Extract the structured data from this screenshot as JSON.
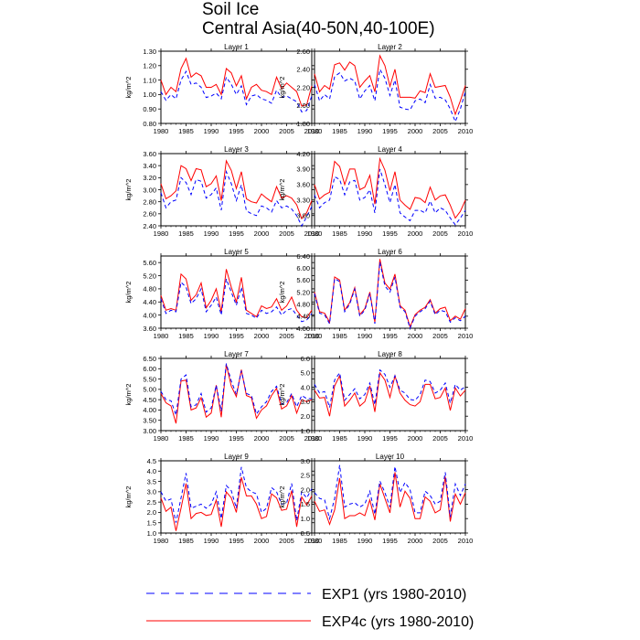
{
  "title": {
    "line1": "Soil Ice",
    "line2": "Central Asia(40-50N,40-100E)"
  },
  "legend": [
    {
      "label": "EXP1 (yrs 1980-2010)",
      "color": "#0000ff",
      "dashed": true
    },
    {
      "label": "EXP4c (yrs 1980-2010)",
      "color": "#ff0000",
      "dashed": false
    }
  ],
  "chart_data": {
    "type": "line",
    "xlabel": "",
    "ylabel": "kg/m^2",
    "x": [
      1980,
      1981,
      1982,
      1983,
      1984,
      1985,
      1986,
      1987,
      1988,
      1989,
      1990,
      1991,
      1992,
      1993,
      1994,
      1995,
      1996,
      1997,
      1998,
      1999,
      2000,
      2001,
      2002,
      2003,
      2004,
      2005,
      2006,
      2007,
      2008,
      2009,
      2010
    ],
    "xlim": [
      1980,
      2010
    ],
    "xticks": [
      1980,
      1985,
      1990,
      1995,
      2000,
      2005,
      2010
    ],
    "series_names": [
      "EXP1 (yrs 1980-2010)",
      "EXP4c (yrs 1980-2010)"
    ],
    "panels": [
      {
        "title": "Layer 1",
        "ylim": [
          0.8,
          1.3
        ],
        "yticks": [
          "0.80",
          "0.90",
          "1.00",
          "1.10",
          "1.20",
          "1.30"
        ],
        "exp1": [
          1.02,
          0.96,
          1.0,
          0.97,
          1.1,
          1.16,
          1.07,
          1.08,
          1.05,
          0.98,
          0.99,
          1.01,
          0.97,
          1.12,
          1.07,
          1.0,
          1.06,
          0.93,
          0.99,
          1.0,
          0.97,
          0.96,
          0.94,
          1.03,
          0.98,
          0.99,
          0.97,
          0.95,
          0.88,
          0.89,
          0.99
        ],
        "exp4c": [
          1.1,
          1.0,
          1.05,
          1.02,
          1.18,
          1.25,
          1.12,
          1.15,
          1.13,
          1.05,
          1.05,
          1.07,
          1.0,
          1.18,
          1.15,
          1.06,
          1.13,
          0.97,
          1.05,
          1.07,
          1.03,
          1.02,
          1.0,
          1.12,
          1.04,
          1.08,
          1.05,
          1.02,
          0.92,
          0.93,
          1.06
        ]
      },
      {
        "title": "Layer 2",
        "ylim": [
          1.8,
          2.6
        ],
        "yticks": [
          "1.80",
          "2.00",
          "2.20",
          "2.40",
          "2.60"
        ],
        "exp1": [
          2.23,
          2.05,
          2.12,
          2.07,
          2.32,
          2.36,
          2.27,
          2.3,
          2.27,
          2.07,
          2.16,
          2.22,
          2.05,
          2.4,
          2.3,
          2.11,
          2.28,
          1.98,
          1.96,
          1.95,
          2.05,
          2.07,
          2.03,
          2.23,
          2.08,
          2.09,
          2.06,
          1.96,
          1.82,
          1.96,
          2.15
        ],
        "exp4c": [
          2.35,
          2.15,
          2.22,
          2.18,
          2.45,
          2.47,
          2.39,
          2.48,
          2.44,
          2.2,
          2.27,
          2.33,
          2.15,
          2.55,
          2.44,
          2.21,
          2.4,
          2.09,
          2.09,
          2.09,
          2.08,
          2.16,
          2.14,
          2.35,
          2.2,
          2.21,
          2.22,
          2.09,
          1.9,
          2.05,
          2.22
        ]
      },
      {
        "title": "Layer 3",
        "ylim": [
          2.4,
          3.6
        ],
        "yticks": [
          "2.40",
          "2.60",
          "2.80",
          "3.00",
          "3.20",
          "3.40",
          "3.60"
        ],
        "exp1": [
          2.95,
          2.7,
          2.8,
          2.83,
          3.2,
          3.12,
          2.92,
          3.17,
          3.14,
          2.86,
          2.92,
          3.03,
          2.66,
          3.3,
          3.1,
          2.82,
          3.08,
          2.65,
          2.6,
          2.57,
          2.73,
          2.7,
          2.63,
          2.82,
          2.7,
          2.73,
          2.68,
          2.57,
          2.4,
          2.55,
          2.72
        ],
        "exp4c": [
          3.1,
          2.85,
          2.9,
          2.98,
          3.4,
          3.35,
          3.15,
          3.35,
          3.33,
          3.05,
          3.1,
          3.23,
          2.82,
          3.48,
          3.32,
          3.02,
          3.3,
          2.85,
          2.8,
          2.78,
          2.93,
          2.86,
          2.8,
          3.05,
          2.86,
          2.9,
          2.86,
          2.75,
          2.52,
          2.62,
          2.82
        ]
      },
      {
        "title": "Layer 4",
        "ylim": [
          2.8,
          4.2
        ],
        "yticks": [
          "3.00",
          "3.30",
          "3.60",
          "3.90",
          "4.20"
        ],
        "exp1": [
          3.4,
          3.15,
          3.25,
          3.3,
          3.75,
          3.7,
          3.4,
          3.65,
          3.68,
          3.3,
          3.35,
          3.5,
          3.05,
          3.9,
          3.6,
          3.25,
          3.6,
          3.05,
          2.97,
          2.9,
          3.1,
          3.1,
          3.05,
          3.28,
          3.05,
          3.15,
          3.1,
          2.95,
          2.82,
          2.95,
          3.1
        ],
        "exp4c": [
          3.6,
          3.32,
          3.4,
          3.45,
          4.05,
          3.95,
          3.6,
          3.9,
          3.9,
          3.5,
          3.55,
          3.78,
          3.22,
          4.1,
          3.88,
          3.48,
          3.85,
          3.3,
          3.2,
          3.12,
          3.35,
          3.33,
          3.25,
          3.55,
          3.3,
          3.38,
          3.4,
          3.2,
          2.95,
          3.08,
          3.3
        ]
      },
      {
        "title": "Layer 5",
        "ylim": [
          3.6,
          5.8
        ],
        "yticks": [
          "3.60",
          "4.00",
          "4.40",
          "4.80",
          "5.20",
          "5.60"
        ],
        "exp1": [
          4.5,
          4.05,
          4.15,
          4.1,
          5.0,
          4.85,
          4.35,
          4.5,
          4.8,
          4.1,
          4.3,
          4.55,
          4.0,
          5.1,
          4.7,
          4.3,
          4.85,
          4.05,
          4.0,
          3.9,
          4.15,
          4.05,
          4.1,
          4.25,
          4.0,
          4.15,
          4.2,
          4.0,
          3.8,
          3.85,
          4.05
        ],
        "exp4c": [
          4.6,
          4.15,
          4.2,
          4.15,
          5.25,
          5.1,
          4.45,
          4.62,
          4.98,
          4.22,
          4.45,
          4.8,
          4.1,
          5.4,
          4.85,
          4.4,
          5.15,
          4.15,
          4.05,
          3.95,
          4.28,
          4.2,
          4.25,
          4.5,
          4.15,
          4.28,
          4.55,
          4.15,
          3.95,
          3.92,
          4.15
        ]
      },
      {
        "title": "Layer 6",
        "ylim": [
          4.0,
          6.4
        ],
        "yticks": [
          "4.00",
          "4.40",
          "4.80",
          "5.20",
          "5.60",
          "6.00",
          "6.40"
        ],
        "exp1": [
          5.15,
          4.5,
          4.45,
          4.15,
          5.65,
          5.55,
          4.55,
          4.8,
          5.3,
          4.4,
          4.6,
          5.15,
          4.15,
          6.2,
          5.4,
          5.2,
          5.7,
          4.7,
          4.55,
          4.0,
          4.4,
          4.55,
          4.65,
          4.9,
          4.45,
          4.6,
          4.55,
          4.2,
          4.35,
          4.25,
          4.4
        ],
        "exp4c": [
          5.2,
          4.55,
          4.5,
          4.2,
          5.7,
          5.6,
          4.6,
          4.85,
          5.35,
          4.45,
          4.65,
          5.2,
          4.2,
          6.3,
          5.5,
          5.3,
          5.8,
          4.75,
          4.6,
          4.05,
          4.45,
          4.6,
          4.7,
          4.95,
          4.5,
          4.65,
          4.7,
          4.25,
          4.4,
          4.3,
          4.65
        ]
      },
      {
        "title": "Layer 7",
        "ylim": [
          3.0,
          6.5
        ],
        "yticks": [
          "3.00",
          "3.50",
          "4.00",
          "4.50",
          "5.00",
          "5.50",
          "6.00",
          "6.50"
        ],
        "exp1": [
          4.9,
          4.5,
          4.45,
          3.75,
          5.5,
          5.7,
          4.15,
          4.25,
          4.8,
          3.9,
          4.1,
          5.2,
          3.95,
          6.25,
          5.4,
          4.75,
          5.9,
          4.8,
          4.7,
          3.8,
          4.15,
          4.4,
          4.9,
          5.15,
          4.3,
          4.35,
          4.8,
          4.15,
          4.7,
          4.55,
          4.55
        ],
        "exp4c": [
          4.8,
          4.35,
          4.2,
          3.35,
          5.4,
          5.45,
          4.0,
          4.1,
          4.6,
          3.65,
          3.85,
          5.2,
          3.65,
          6.2,
          5.15,
          4.65,
          5.95,
          4.7,
          4.6,
          3.6,
          4.0,
          4.2,
          4.7,
          5.05,
          4.05,
          4.2,
          4.7,
          3.85,
          4.5,
          4.4,
          4.5
        ]
      },
      {
        "title": "Layer 8",
        "ylim": [
          1.0,
          6.0
        ],
        "yticks": [
          "1.0",
          "2.0",
          "3.0",
          "4.0",
          "5.0",
          "6.0"
        ],
        "exp1": [
          4.2,
          3.6,
          3.7,
          2.6,
          4.5,
          5.0,
          3.1,
          3.5,
          3.9,
          3.2,
          3.5,
          4.3,
          2.8,
          5.2,
          4.9,
          4.0,
          4.8,
          3.8,
          3.6,
          3.15,
          3.1,
          3.5,
          4.5,
          4.4,
          3.6,
          3.8,
          4.3,
          2.9,
          4.2,
          3.8,
          4.05
        ],
        "exp4c": [
          3.8,
          3.25,
          3.3,
          2.0,
          4.1,
          4.8,
          2.7,
          3.1,
          3.6,
          2.7,
          3.0,
          4.1,
          2.3,
          5.0,
          4.5,
          3.3,
          4.8,
          3.6,
          3.1,
          2.8,
          2.7,
          3.0,
          4.2,
          4.2,
          3.2,
          3.3,
          3.95,
          2.4,
          3.95,
          3.4,
          3.8
        ]
      },
      {
        "title": "Layer 9",
        "ylim": [
          1.0,
          4.5
        ],
        "yticks": [
          "1.0",
          "1.5",
          "2.0",
          "2.5",
          "3.0",
          "3.5",
          "4.0",
          "4.5"
        ],
        "exp1": [
          3.0,
          2.55,
          2.65,
          1.5,
          2.7,
          3.9,
          2.2,
          2.3,
          2.4,
          2.2,
          2.4,
          3.0,
          1.7,
          3.3,
          3.05,
          2.2,
          4.2,
          3.2,
          3.0,
          2.9,
          2.0,
          2.2,
          3.2,
          3.0,
          2.4,
          2.45,
          3.4,
          1.6,
          3.0,
          2.7,
          3.15
        ],
        "exp4c": [
          2.7,
          2.05,
          2.25,
          1.1,
          2.2,
          3.4,
          1.7,
          1.95,
          2.0,
          1.85,
          1.9,
          2.6,
          1.3,
          3.0,
          2.7,
          2.0,
          3.7,
          2.8,
          2.8,
          2.4,
          1.7,
          1.8,
          2.9,
          2.7,
          2.1,
          2.15,
          3.05,
          1.3,
          2.75,
          2.35,
          2.8
        ]
      },
      {
        "title": "Layer 10",
        "ylim": [
          0.5,
          3.0
        ],
        "yticks": [
          "0.5",
          "1.0",
          "1.5",
          "2.0",
          "2.5",
          "3.0"
        ],
        "exp1": [
          1.9,
          1.7,
          1.65,
          1.0,
          1.7,
          2.85,
          1.4,
          1.5,
          1.55,
          1.4,
          1.5,
          1.95,
          1.15,
          2.3,
          1.9,
          1.4,
          2.8,
          1.9,
          2.25,
          2.0,
          1.2,
          1.2,
          1.95,
          1.8,
          1.5,
          1.6,
          2.6,
          1.05,
          2.2,
          1.8,
          2.2
        ],
        "exp4c": [
          1.6,
          1.25,
          1.3,
          0.8,
          1.3,
          2.4,
          1.0,
          1.1,
          1.1,
          1.2,
          1.1,
          1.65,
          0.95,
          2.2,
          1.7,
          1.2,
          2.6,
          1.4,
          1.95,
          1.7,
          1.0,
          1.0,
          1.75,
          1.6,
          1.2,
          1.3,
          2.45,
          0.9,
          1.85,
          1.5,
          1.9
        ]
      }
    ]
  }
}
